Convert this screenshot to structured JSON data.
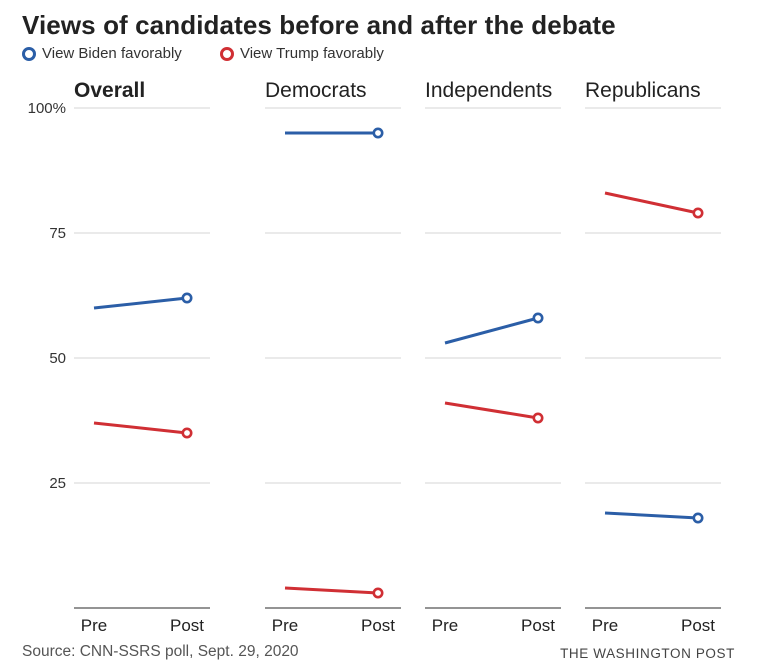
{
  "title": "Views of candidates before and after the debate",
  "legend": [
    {
      "label": "View Biden favorably",
      "color": "#2b5ea7"
    },
    {
      "label": "View Trump favorably",
      "color": "#d02f34"
    }
  ],
  "source": "Source: CNN-SSRS poll, Sept. 29, 2020",
  "credit": "THE WASHINGTON POST",
  "chart_data": {
    "type": "line",
    "title": "Views of candidates before and after the debate",
    "x": [
      "Pre",
      "Post"
    ],
    "ylim": [
      0,
      100
    ],
    "yticks": [
      25,
      50,
      75,
      100
    ],
    "ytick_labels": [
      "25",
      "50",
      "75",
      "100%"
    ],
    "grid": true,
    "legend_position": "top-left",
    "panels": [
      {
        "name": "Overall",
        "bold": true,
        "series": [
          {
            "name": "View Biden favorably",
            "values": [
              60,
              62
            ]
          },
          {
            "name": "View Trump favorably",
            "values": [
              37,
              35
            ]
          }
        ]
      },
      {
        "name": "Democrats",
        "bold": false,
        "series": [
          {
            "name": "View Biden favorably",
            "values": [
              95,
              95
            ]
          },
          {
            "name": "View Trump favorably",
            "values": [
              4,
              3
            ]
          }
        ]
      },
      {
        "name": "Independents",
        "bold": false,
        "series": [
          {
            "name": "View Biden favorably",
            "values": [
              53,
              58
            ]
          },
          {
            "name": "View Trump favorably",
            "values": [
              41,
              38
            ]
          }
        ]
      },
      {
        "name": "Republicans",
        "bold": false,
        "series": [
          {
            "name": "View Biden favorably",
            "values": [
              19,
              18
            ]
          },
          {
            "name": "View Trump favorably",
            "values": [
              83,
              79
            ]
          }
        ]
      }
    ]
  }
}
